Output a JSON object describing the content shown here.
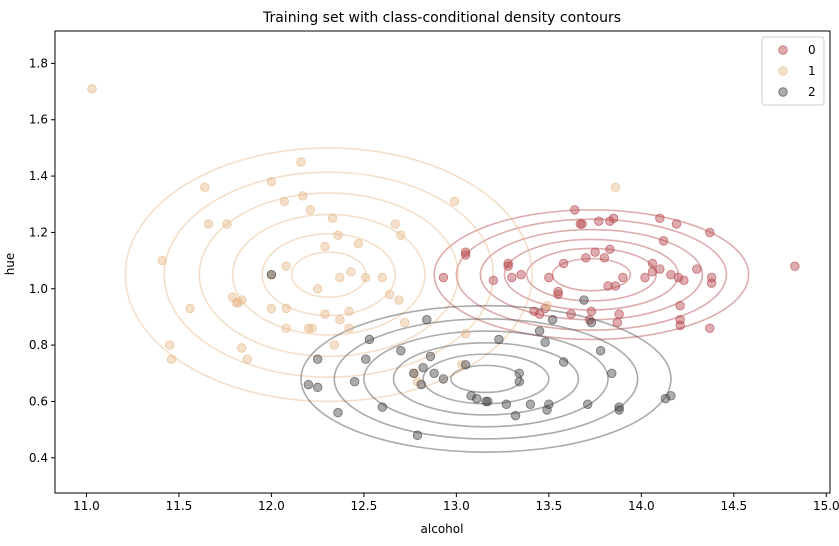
{
  "chart_data": {
    "type": "scatter",
    "title": "Training set with class-conditional density contours",
    "xlabel": "alcohol",
    "ylabel": "hue",
    "xlim": [
      10.83,
      15.02
    ],
    "ylim": [
      0.275,
      1.915
    ],
    "x_ticks": [
      "11.0",
      "11.5",
      "12.0",
      "12.5",
      "13.0",
      "13.5",
      "14.0",
      "14.5",
      "15.0"
    ],
    "y_ticks": [
      "0.4",
      "0.6",
      "0.8",
      "1.0",
      "1.2",
      "1.4",
      "1.6",
      "1.8"
    ],
    "grid": false,
    "legend_position": "top-right",
    "series": [
      {
        "name": "0",
        "color": "#b5464b",
        "contour_center": [
          13.73,
          1.05
        ],
        "contour_radii": [
          [
            0.85,
            0.23
          ],
          [
            0.73,
            0.197
          ],
          [
            0.6,
            0.16
          ],
          [
            0.47,
            0.125
          ],
          [
            0.35,
            0.093
          ],
          [
            0.21,
            0.057
          ]
        ],
        "points": [
          [
            13.05,
            1.12
          ],
          [
            13.05,
            1.13
          ],
          [
            13.2,
            1.03
          ],
          [
            13.28,
            1.08
          ],
          [
            13.28,
            1.09
          ],
          [
            13.3,
            1.04
          ],
          [
            13.35,
            1.05
          ],
          [
            13.42,
            0.92
          ],
          [
            13.45,
            0.91
          ],
          [
            13.48,
            0.93
          ],
          [
            13.5,
            1.04
          ],
          [
            13.55,
            0.99
          ],
          [
            13.55,
            0.98
          ],
          [
            13.58,
            1.09
          ],
          [
            13.62,
            0.91
          ],
          [
            13.64,
            1.28
          ],
          [
            13.67,
            1.23
          ],
          [
            13.68,
            1.23
          ],
          [
            13.7,
            1.11
          ],
          [
            13.72,
            0.89
          ],
          [
            13.73,
            0.92
          ],
          [
            13.75,
            1.13
          ],
          [
            13.77,
            1.24
          ],
          [
            13.8,
            1.11
          ],
          [
            13.82,
            1.01
          ],
          [
            13.83,
            1.24
          ],
          [
            13.83,
            1.14
          ],
          [
            13.85,
            1.25
          ],
          [
            13.86,
            1.01
          ],
          [
            13.87,
            0.88
          ],
          [
            13.88,
            0.91
          ],
          [
            13.9,
            1.04
          ],
          [
            14.02,
            1.04
          ],
          [
            14.06,
            1.09
          ],
          [
            14.06,
            1.06
          ],
          [
            14.1,
            1.25
          ],
          [
            14.12,
            1.17
          ],
          [
            14.1,
            1.07
          ],
          [
            14.16,
            1.05
          ],
          [
            14.19,
            1.23
          ],
          [
            14.2,
            1.04
          ],
          [
            14.21,
            0.94
          ],
          [
            14.21,
            0.89
          ],
          [
            14.21,
            0.87
          ],
          [
            14.23,
            1.03
          ],
          [
            14.3,
            1.07
          ],
          [
            14.37,
            1.2
          ],
          [
            14.37,
            0.86
          ],
          [
            14.38,
            1.04
          ],
          [
            14.38,
            1.02
          ],
          [
            14.83,
            1.08
          ],
          [
            12.93,
            1.04
          ]
        ]
      },
      {
        "name": "1",
        "color": "#e6b98a",
        "contour_center": [
          12.31,
          1.05
        ],
        "contour_radii": [
          [
            1.1,
            0.45
          ],
          [
            0.89,
            0.364
          ],
          [
            0.7,
            0.29
          ],
          [
            0.52,
            0.214
          ],
          [
            0.36,
            0.145
          ],
          [
            0.2,
            0.08
          ]
        ],
        "points": [
          [
            11.03,
            1.71
          ],
          [
            11.41,
            1.1
          ],
          [
            11.45,
            0.8
          ],
          [
            11.46,
            0.75
          ],
          [
            11.56,
            0.93
          ],
          [
            11.64,
            1.36
          ],
          [
            11.66,
            1.23
          ],
          [
            11.76,
            1.23
          ],
          [
            11.79,
            0.97
          ],
          [
            11.81,
            0.95
          ],
          [
            11.82,
            0.95
          ],
          [
            11.84,
            0.79
          ],
          [
            11.84,
            0.96
          ],
          [
            11.87,
            0.75
          ],
          [
            12.0,
            1.05
          ],
          [
            12.0,
            1.38
          ],
          [
            12.0,
            0.93
          ],
          [
            12.07,
            1.31
          ],
          [
            12.08,
            0.86
          ],
          [
            12.08,
            1.08
          ],
          [
            12.08,
            0.93
          ],
          [
            12.16,
            1.45
          ],
          [
            12.17,
            1.33
          ],
          [
            12.2,
            0.86
          ],
          [
            12.21,
            1.28
          ],
          [
            12.22,
            0.86
          ],
          [
            12.25,
            1.0
          ],
          [
            12.29,
            1.15
          ],
          [
            12.29,
            0.91
          ],
          [
            12.33,
            1.25
          ],
          [
            12.34,
            0.8
          ],
          [
            12.36,
            1.19
          ],
          [
            12.37,
            0.89
          ],
          [
            12.37,
            1.04
          ],
          [
            12.42,
            0.92
          ],
          [
            12.42,
            0.86
          ],
          [
            12.43,
            1.06
          ],
          [
            12.47,
            1.16
          ],
          [
            12.51,
            1.04
          ],
          [
            12.6,
            1.04
          ],
          [
            12.64,
            0.98
          ],
          [
            12.67,
            1.23
          ],
          [
            12.69,
            0.96
          ],
          [
            12.7,
            1.19
          ],
          [
            12.72,
            0.88
          ],
          [
            12.77,
            0.7
          ],
          [
            12.79,
            0.67
          ],
          [
            12.99,
            1.31
          ],
          [
            13.03,
            0.73
          ],
          [
            13.05,
            0.84
          ],
          [
            13.49,
            0.94
          ],
          [
            13.86,
            1.36
          ]
        ]
      },
      {
        "name": "2",
        "color": "#444444",
        "contour_center": [
          13.16,
          0.68
        ],
        "contour_radii": [
          [
            1.0,
            0.26
          ],
          [
            0.82,
            0.213
          ],
          [
            0.66,
            0.17
          ],
          [
            0.5,
            0.128
          ],
          [
            0.34,
            0.088
          ],
          [
            0.19,
            0.048
          ]
        ],
        "points": [
          [
            12.2,
            0.66
          ],
          [
            12.25,
            0.75
          ],
          [
            12.25,
            0.65
          ],
          [
            12.36,
            0.56
          ],
          [
            12.45,
            0.67
          ],
          [
            12.51,
            0.75
          ],
          [
            12.53,
            0.82
          ],
          [
            12.6,
            0.58
          ],
          [
            12.7,
            0.78
          ],
          [
            12.77,
            0.7
          ],
          [
            12.79,
            0.48
          ],
          [
            12.82,
            0.72
          ],
          [
            12.81,
            0.66
          ],
          [
            12.84,
            0.89
          ],
          [
            12.86,
            0.76
          ],
          [
            12.88,
            0.7
          ],
          [
            12.93,
            0.68
          ],
          [
            13.05,
            0.73
          ],
          [
            13.08,
            0.62
          ],
          [
            13.11,
            0.61
          ],
          [
            13.16,
            0.6
          ],
          [
            13.17,
            0.6
          ],
          [
            13.23,
            0.82
          ],
          [
            13.27,
            0.59
          ],
          [
            13.32,
            0.55
          ],
          [
            13.34,
            0.7
          ],
          [
            13.34,
            0.67
          ],
          [
            13.4,
            0.59
          ],
          [
            13.45,
            0.85
          ],
          [
            13.48,
            0.81
          ],
          [
            13.49,
            0.57
          ],
          [
            13.5,
            0.59
          ],
          [
            13.52,
            0.89
          ],
          [
            13.58,
            0.74
          ],
          [
            13.69,
            0.96
          ],
          [
            13.71,
            0.59
          ],
          [
            13.73,
            0.88
          ],
          [
            13.78,
            0.78
          ],
          [
            13.84,
            0.7
          ],
          [
            13.88,
            0.57
          ],
          [
            13.88,
            0.58
          ],
          [
            14.13,
            0.61
          ],
          [
            14.16,
            0.62
          ],
          [
            12.0,
            1.05
          ]
        ]
      }
    ]
  }
}
